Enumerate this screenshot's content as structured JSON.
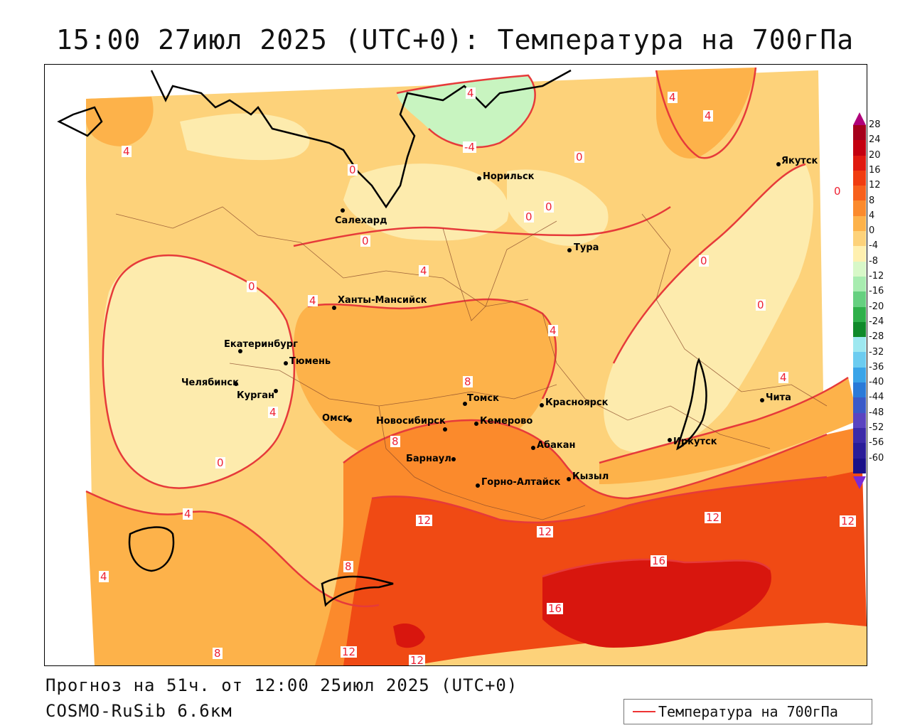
{
  "title": "15:00 27июл 2025 (UTC+0): Температура на 700гПа",
  "footer": {
    "forecast": "Прогноз на 51ч. от 12:00 25июл 2025 (UTC+0)",
    "model": "COSMO-RuSib 6.6км"
  },
  "legend": {
    "label": "Температура на 700гПа",
    "line_color": "#e33333"
  },
  "colorbar": {
    "levels": [
      "28",
      "24",
      "20",
      "16",
      "12",
      "8",
      "4",
      "0",
      "-4",
      "-8",
      "-12",
      "-16",
      "-20",
      "-24",
      "-28",
      "-32",
      "-36",
      "-40",
      "-44",
      "-48",
      "-52",
      "-56",
      "-60"
    ],
    "colors": [
      "#a5001c",
      "#c40010",
      "#e01a10",
      "#f03c10",
      "#f7601c",
      "#fb8a2c",
      "#fdb24a",
      "#fdd27a",
      "#fff0b0",
      "#d8f8c8",
      "#a8ecb0",
      "#66d080",
      "#2fb04a",
      "#108a2a",
      "#9ee8f0",
      "#6cccf0",
      "#3aa4e8",
      "#2a7ad8",
      "#3a5ac8",
      "#5a44c0",
      "#3c2aa8",
      "#2a1c98",
      "#1a1088"
    ]
  },
  "cities": [
    {
      "name": "Якутск"
    },
    {
      "name": "Норильск"
    },
    {
      "name": "Салехард"
    },
    {
      "name": "Тура"
    },
    {
      "name": "Ханты-Мансийск"
    },
    {
      "name": "Екатеринбург"
    },
    {
      "name": "Тюмень"
    },
    {
      "name": "Челябинск"
    },
    {
      "name": "Курган"
    },
    {
      "name": "Омск"
    },
    {
      "name": "Новосибирск"
    },
    {
      "name": "Томск"
    },
    {
      "name": "Кемерово"
    },
    {
      "name": "Красноярск"
    },
    {
      "name": "Барнаул"
    },
    {
      "name": "Абакан"
    },
    {
      "name": "Горно-Алтайск"
    },
    {
      "name": "Кызыл"
    },
    {
      "name": "Иркутск"
    },
    {
      "name": "Чита"
    }
  ],
  "contour_labels": [
    "4",
    "4",
    "0",
    "4",
    "-4",
    "0",
    "0",
    "0",
    "0",
    "0",
    "4",
    "4",
    "0",
    "0",
    "4",
    "4",
    "8",
    "4",
    "0",
    "4",
    "4",
    "12",
    "12",
    "12",
    "12",
    "16",
    "16",
    "8",
    "12",
    "12",
    "8",
    "8",
    "0",
    "4"
  ]
}
